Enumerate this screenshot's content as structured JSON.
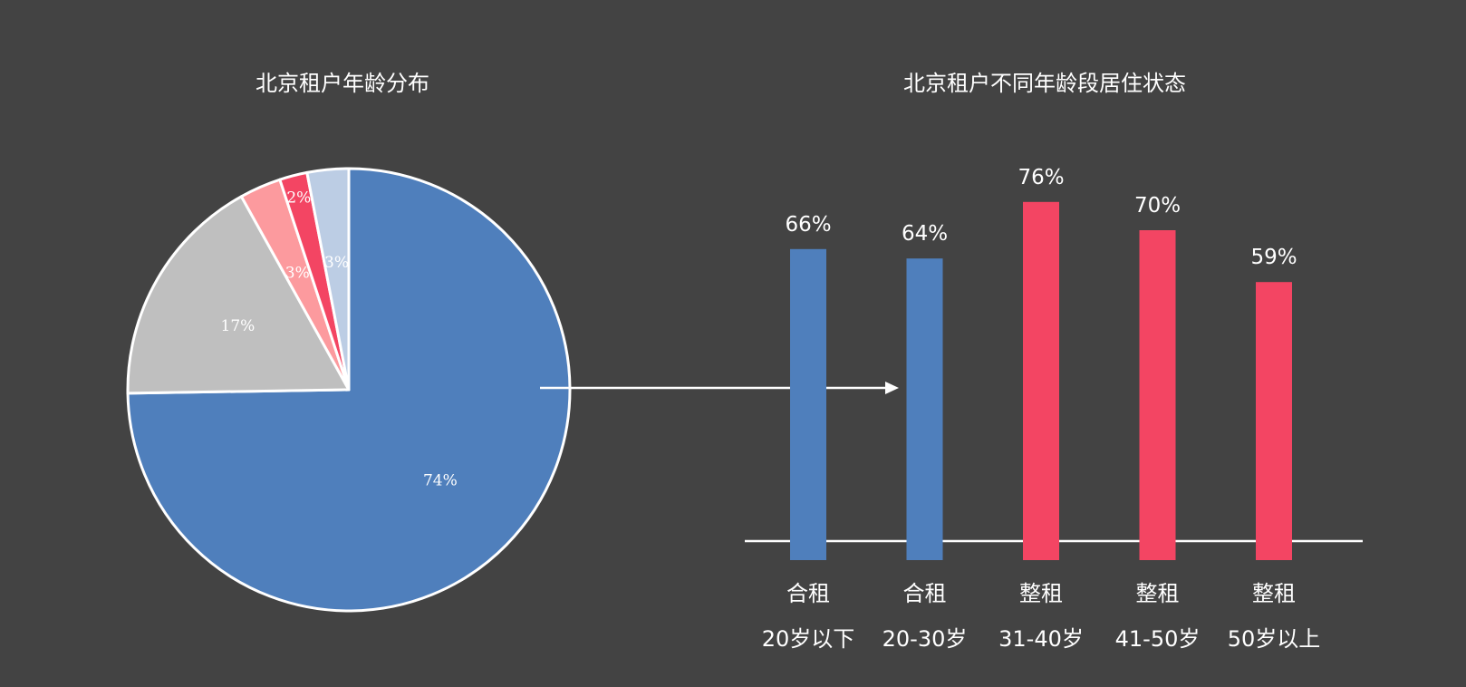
{
  "colors": {
    "background": "#434343",
    "blue": "#4f7fbc",
    "red": "#f34563",
    "grey": "#bfbfbf",
    "pink": "#fc9a9e",
    "light_blue": "#bccde4",
    "white": "#ffffff"
  },
  "chart_data": [
    {
      "type": "pie",
      "title": "北京租户年龄分布",
      "start_angle_deg": 0,
      "direction": "clockwise",
      "slices": [
        {
          "label": "74%",
          "value": 74,
          "color": "#4f7fbc",
          "label_color": "#ffffff"
        },
        {
          "label": "17%",
          "value": 17,
          "color": "#bfbfbf",
          "label_color": "#ffffff"
        },
        {
          "label": "3%",
          "value": 3,
          "color": "#fc9a9e",
          "label_color": "#ffffff"
        },
        {
          "label": "2%",
          "value": 2,
          "color": "#f34563",
          "label_color": "#ffffff"
        },
        {
          "label": "3%",
          "value": 3,
          "color": "#bccde4",
          "label_color": "#ffffff"
        }
      ]
    },
    {
      "type": "bar",
      "title": "北京租户不同年龄段居住状态",
      "ylim": [
        0,
        100
      ],
      "categories": [
        "20岁以下",
        "20-30岁",
        "31-40岁",
        "41-50岁",
        "50岁以上"
      ],
      "bars": [
        {
          "value": 66,
          "value_label": "66%",
          "status": "合租",
          "age": "20岁以下",
          "color": "#4f7fbc"
        },
        {
          "value": 64,
          "value_label": "64%",
          "status": "合租",
          "age": "20-30岁",
          "color": "#4f7fbc"
        },
        {
          "value": 76,
          "value_label": "76%",
          "status": "整租",
          "age": "31-40岁",
          "color": "#f34563"
        },
        {
          "value": 70,
          "value_label": "70%",
          "status": "整租",
          "age": "41-50岁",
          "color": "#f34563"
        },
        {
          "value": 59,
          "value_label": "59%",
          "status": "整租",
          "age": "50岁以上",
          "color": "#f34563"
        }
      ]
    }
  ]
}
